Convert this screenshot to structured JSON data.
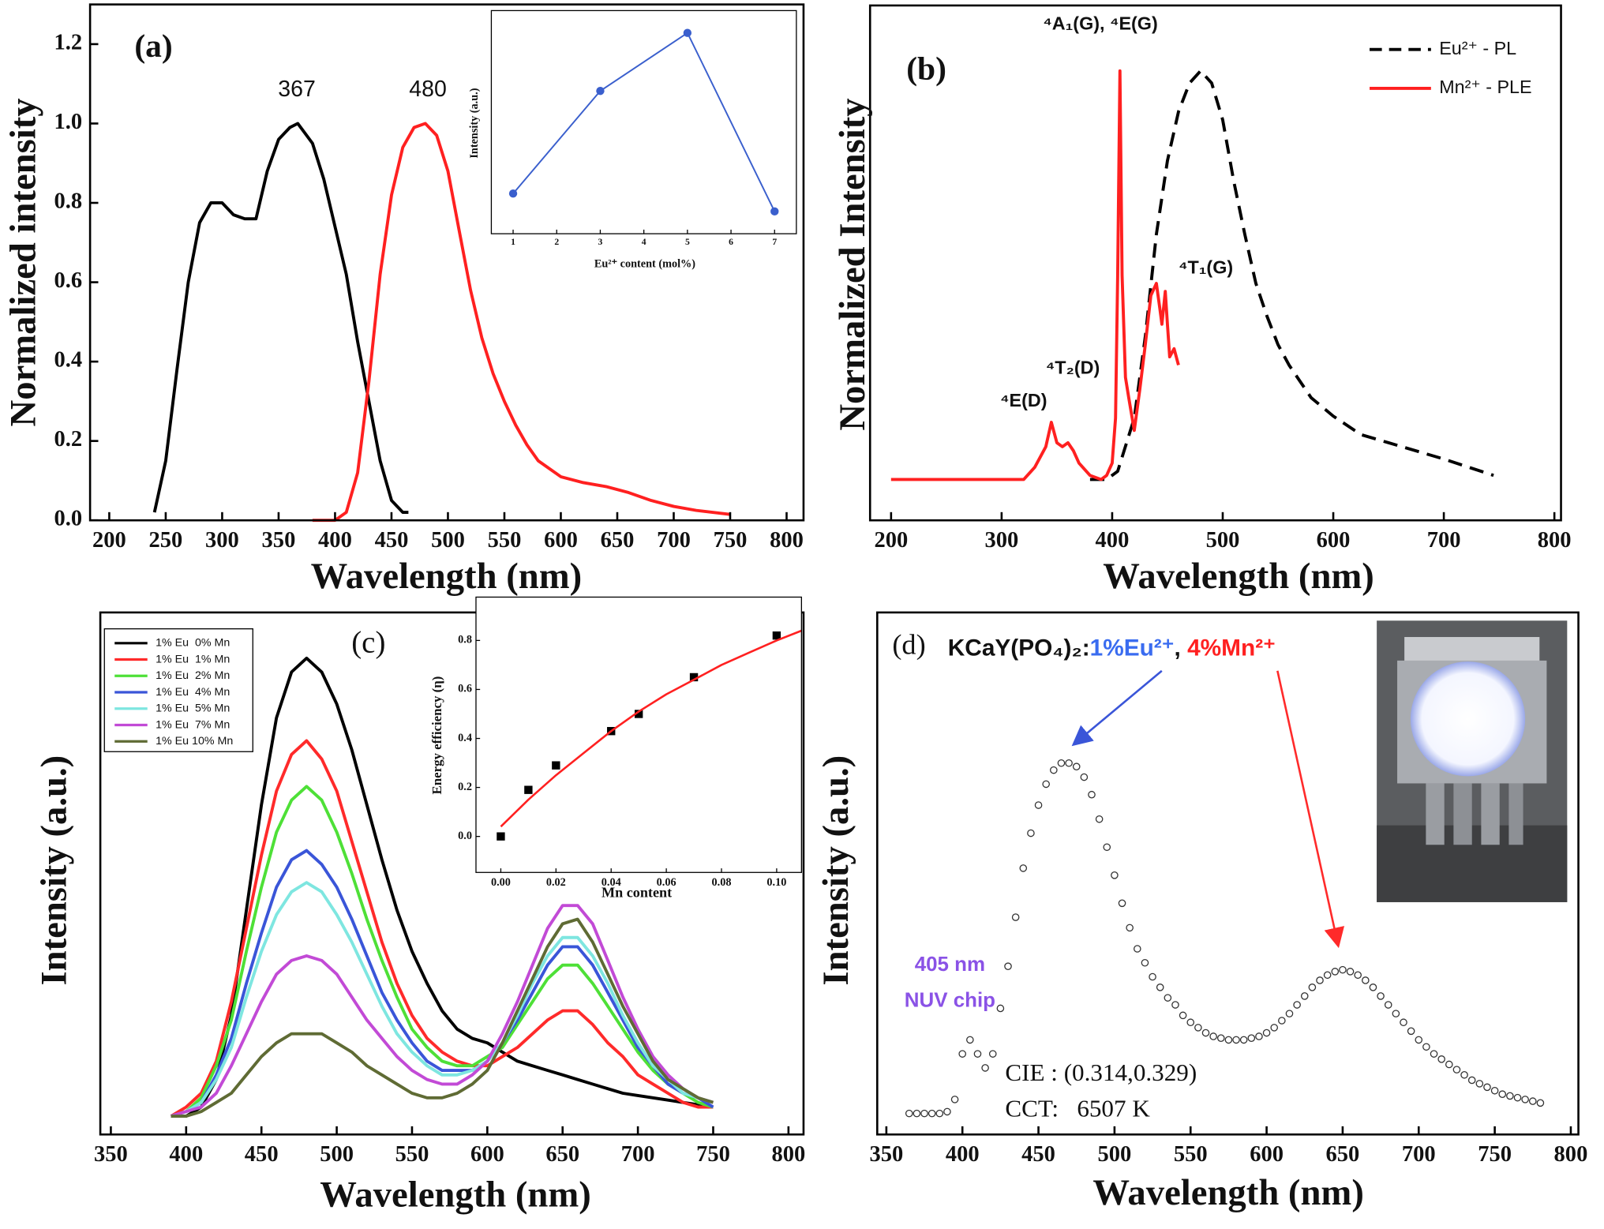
{
  "chart_data": [
    {
      "type": "line",
      "title": "(a)",
      "xlabel": "Wavelength (nm)",
      "ylabel": "Normalized intensity",
      "annotations": [
        "367",
        "480"
      ],
      "xlim": [
        183,
        815
      ],
      "xticks": [
        200,
        250,
        300,
        350,
        400,
        450,
        500,
        550,
        600,
        650,
        700,
        750,
        800
      ],
      "ylim": [
        0,
        1.3
      ],
      "yticks": [
        {
          "value": 0,
          "label": "0.0"
        },
        0.2,
        0.4,
        0.6,
        0.8,
        {
          "value": 1,
          "label": "1.0"
        },
        1.2
      ],
      "series": [
        {
          "color": "#000000",
          "mode": "line",
          "x": [
            240,
            250,
            260,
            270,
            280,
            290,
            300,
            310,
            320,
            330,
            340,
            350,
            360,
            367,
            380,
            390,
            400,
            410,
            420,
            430,
            440,
            450,
            460,
            465
          ],
          "values": [
            0.02,
            0.15,
            0.38,
            0.6,
            0.75,
            0.8,
            0.8,
            0.77,
            0.76,
            0.76,
            0.88,
            0.96,
            0.99,
            1,
            0.95,
            0.86,
            0.74,
            0.62,
            0.45,
            0.3,
            0.15,
            0.05,
            0.02,
            0.02
          ]
        },
        {
          "color": "#ff2020",
          "mode": "line",
          "x": [
            380,
            400,
            410,
            420,
            430,
            440,
            450,
            460,
            470,
            480,
            490,
            500,
            510,
            520,
            530,
            540,
            550,
            560,
            570,
            580,
            600,
            620,
            640,
            660,
            680,
            700,
            720,
            750
          ],
          "values": [
            0,
            0,
            0.02,
            0.12,
            0.35,
            0.62,
            0.82,
            0.94,
            0.99,
            1,
            0.97,
            0.88,
            0.73,
            0.58,
            0.46,
            0.37,
            0.3,
            0.24,
            0.19,
            0.15,
            0.11,
            0.095,
            0.085,
            0.07,
            0.05,
            0.035,
            0.025,
            0.015
          ]
        }
      ]
    },
    {
      "type": "line",
      "xlabel": "Eu²⁺ content (mol%)",
      "ylabel": "Intensity (a.u.)",
      "xlim": [
        0.5,
        7.5
      ],
      "xticks": [
        1,
        2,
        3,
        4,
        5,
        6,
        7
      ],
      "ylim": [
        0,
        1
      ],
      "x": [
        1,
        3,
        5,
        7
      ],
      "series": [
        {
          "color": "#3a5fcd",
          "mode": "line+markers",
          "marker": "circle",
          "values": [
            0.18,
            0.64,
            0.9,
            0.1
          ]
        }
      ]
    },
    {
      "type": "line",
      "title": "(b)",
      "xlabel": "Wavelength (nm)",
      "ylabel": "Normalized Intensity",
      "annotations": [
        "⁴A₁(G), ⁴E(G)",
        "⁴T₁(G)",
        "⁴T₂(D)",
        "⁴E(D)"
      ],
      "xlim": [
        181,
        806
      ],
      "xticks": [
        200,
        300,
        400,
        500,
        600,
        700,
        800
      ],
      "ylim": [
        -0.1,
        1.16
      ],
      "legend": "upper right",
      "series": [
        {
          "name": "Eu²⁺ - PL",
          "color": "#000000",
          "mode": "line",
          "dash": true,
          "x": [
            380,
            395,
            405,
            420,
            430,
            440,
            450,
            460,
            470,
            480,
            490,
            500,
            510,
            520,
            530,
            540,
            550,
            560,
            580,
            600,
            625,
            650,
            700,
            745
          ],
          "values": [
            0,
            0,
            0.02,
            0.15,
            0.35,
            0.6,
            0.78,
            0.9,
            0.97,
            1,
            0.97,
            0.88,
            0.73,
            0.6,
            0.48,
            0.4,
            0.33,
            0.28,
            0.2,
            0.155,
            0.11,
            0.09,
            0.05,
            0.01
          ]
        },
        {
          "name": "Mn²⁺ - PLE",
          "color": "#ff2020",
          "mode": "line",
          "x": [
            200,
            320,
            330,
            340,
            345,
            350,
            355,
            360,
            365,
            370,
            380,
            390,
            395,
            400,
            403,
            405,
            407,
            409,
            412,
            415,
            420,
            425,
            430,
            435,
            440,
            443,
            445,
            448,
            450,
            452,
            456,
            460
          ],
          "values": [
            0,
            0,
            0.03,
            0.08,
            0.14,
            0.09,
            0.08,
            0.09,
            0.07,
            0.04,
            0.01,
            0,
            0.01,
            0.04,
            0.15,
            0.5,
            1,
            0.5,
            0.25,
            0.2,
            0.12,
            0.22,
            0.33,
            0.45,
            0.48,
            0.42,
            0.38,
            0.46,
            0.38,
            0.3,
            0.32,
            0.28
          ]
        }
      ]
    },
    {
      "type": "line",
      "title": "(c)",
      "xlabel": "Wavelength (nm)",
      "ylabel": "Intensity (a.u.)",
      "xlim": [
        343,
        810
      ],
      "xticks": [
        350,
        400,
        450,
        500,
        550,
        600,
        650,
        700,
        750,
        800
      ],
      "ylim": [
        -0.04,
        1.1
      ],
      "legend": "upper left",
      "x": [
        390,
        400,
        410,
        420,
        430,
        440,
        450,
        460,
        470,
        480,
        490,
        500,
        510,
        520,
        530,
        540,
        550,
        560,
        570,
        580,
        590,
        600,
        610,
        620,
        630,
        640,
        650,
        660,
        670,
        680,
        690,
        700,
        710,
        720,
        730,
        740,
        750
      ],
      "series": [
        {
          "name": "1% Eu  0% Mn",
          "color": "#000000",
          "mode": "line",
          "values": [
            0,
            0,
            0.02,
            0.08,
            0.22,
            0.45,
            0.68,
            0.87,
            0.97,
            1,
            0.97,
            0.9,
            0.8,
            0.68,
            0.56,
            0.45,
            0.36,
            0.29,
            0.23,
            0.19,
            0.17,
            0.16,
            0.14,
            0.12,
            0.11,
            0.1,
            0.09,
            0.08,
            0.07,
            0.06,
            0.05,
            0.045,
            0.04,
            0.035,
            0.03,
            0.025,
            0.02
          ]
        },
        {
          "name": "1% Eu  1% Mn",
          "color": "#ff2a2a",
          "mode": "line",
          "values": [
            0,
            0.02,
            0.05,
            0.12,
            0.25,
            0.41,
            0.57,
            0.71,
            0.79,
            0.82,
            0.78,
            0.71,
            0.6,
            0.49,
            0.38,
            0.29,
            0.22,
            0.17,
            0.14,
            0.12,
            0.11,
            0.11,
            0.13,
            0.15,
            0.18,
            0.21,
            0.23,
            0.23,
            0.2,
            0.16,
            0.13,
            0.09,
            0.07,
            0.05,
            0.03,
            0.02,
            0.02
          ]
        },
        {
          "name": "1% Eu  2% Mn",
          "color": "#4ee037",
          "mode": "line",
          "values": [
            0,
            0.01,
            0.04,
            0.11,
            0.21,
            0.36,
            0.5,
            0.62,
            0.69,
            0.72,
            0.69,
            0.62,
            0.53,
            0.43,
            0.34,
            0.26,
            0.19,
            0.15,
            0.12,
            0.11,
            0.11,
            0.13,
            0.15,
            0.2,
            0.25,
            0.3,
            0.33,
            0.33,
            0.29,
            0.24,
            0.19,
            0.14,
            0.1,
            0.07,
            0.05,
            0.03,
            0.02
          ]
        },
        {
          "name": "1% Eu  4% Mn",
          "color": "#3a55d8",
          "mode": "line",
          "values": [
            0,
            0.01,
            0.03,
            0.09,
            0.17,
            0.29,
            0.4,
            0.5,
            0.56,
            0.58,
            0.55,
            0.5,
            0.43,
            0.35,
            0.27,
            0.21,
            0.16,
            0.12,
            0.1,
            0.1,
            0.1,
            0.12,
            0.16,
            0.21,
            0.27,
            0.33,
            0.37,
            0.37,
            0.33,
            0.27,
            0.21,
            0.15,
            0.11,
            0.07,
            0.05,
            0.04,
            0.02
          ]
        },
        {
          "name": "1% Eu  5% Mn",
          "color": "#7ee6e0",
          "mode": "line",
          "values": [
            0,
            0.01,
            0.03,
            0.08,
            0.15,
            0.26,
            0.36,
            0.44,
            0.49,
            0.51,
            0.49,
            0.44,
            0.38,
            0.31,
            0.24,
            0.18,
            0.14,
            0.11,
            0.09,
            0.09,
            0.1,
            0.12,
            0.16,
            0.22,
            0.29,
            0.35,
            0.39,
            0.39,
            0.35,
            0.29,
            0.22,
            0.16,
            0.11,
            0.08,
            0.05,
            0.04,
            0.03
          ]
        },
        {
          "name": "1% Eu  7% Mn",
          "color": "#c24ad6",
          "mode": "line",
          "values": [
            0,
            0.01,
            0.02,
            0.05,
            0.11,
            0.18,
            0.25,
            0.31,
            0.34,
            0.35,
            0.34,
            0.31,
            0.26,
            0.21,
            0.17,
            0.13,
            0.1,
            0.08,
            0.07,
            0.07,
            0.09,
            0.12,
            0.18,
            0.25,
            0.33,
            0.41,
            0.46,
            0.46,
            0.42,
            0.34,
            0.26,
            0.19,
            0.13,
            0.09,
            0.06,
            0.04,
            0.03
          ]
        },
        {
          "name": "1% Eu 10% Mn",
          "color": "#5f6b34",
          "mode": "line",
          "values": [
            0,
            0,
            0.01,
            0.03,
            0.05,
            0.09,
            0.13,
            0.16,
            0.18,
            0.18,
            0.18,
            0.16,
            0.14,
            0.11,
            0.09,
            0.07,
            0.05,
            0.04,
            0.04,
            0.05,
            0.07,
            0.1,
            0.16,
            0.23,
            0.3,
            0.37,
            0.42,
            0.43,
            0.38,
            0.31,
            0.24,
            0.18,
            0.12,
            0.08,
            0.06,
            0.04,
            0.03
          ]
        }
      ]
    },
    {
      "type": "scatter",
      "xlabel": "Mn content",
      "ylabel": "Energy efficiency (η)",
      "xlim": [
        -0.009,
        0.109
      ],
      "xticks": [
        {
          "value": 0,
          "label": "0.00"
        },
        0.02,
        0.04,
        0.06,
        0.08,
        {
          "value": 0.1,
          "label": "0.10"
        }
      ],
      "ylim": [
        -0.147,
        0.977
      ],
      "yticks": [
        {
          "value": 0,
          "label": "0.0"
        },
        0.2,
        0.4,
        0.6,
        0.8
      ],
      "series": [
        {
          "color": "#000000",
          "mode": "markers",
          "marker": "square",
          "x": [
            0,
            0.01,
            0.02,
            0.04,
            0.05,
            0.07,
            0.1
          ],
          "values": [
            0,
            0.19,
            0.29,
            0.43,
            0.5,
            0.65,
            0.82
          ]
        },
        {
          "color": "#ff2020",
          "mode": "line",
          "x": [
            0,
            0.01,
            0.02,
            0.03,
            0.04,
            0.05,
            0.06,
            0.07,
            0.08,
            0.09,
            0.1,
            0.109
          ],
          "values": [
            0.04,
            0.15,
            0.25,
            0.34,
            0.43,
            0.51,
            0.58,
            0.64,
            0.7,
            0.75,
            0.8,
            0.84
          ]
        }
      ]
    },
    {
      "type": "scatter",
      "title": "(d)",
      "formula": [
        "KCaY(PO₄)₂:",
        "1%Eu²⁺",
        ", ",
        "4%Mn²⁺"
      ],
      "xlabel": "Wavelength (nm)",
      "ylabel": "Intensity (a.u.)",
      "annotations": [
        "405 nm",
        "NUV chip",
        "CIE : (0.314,0.329)",
        "CCT:   6507 K"
      ],
      "xlim": [
        344,
        805
      ],
      "xticks": [
        350,
        400,
        450,
        500,
        550,
        600,
        650,
        700,
        750,
        800
      ],
      "ylim": [
        -0.06,
        1.43
      ],
      "series": [
        {
          "color": "#333333",
          "mode": "markers",
          "marker": "open-circle",
          "x": [
            365,
            370,
            375,
            380,
            385,
            390,
            395,
            400,
            405,
            410,
            415,
            420,
            425,
            430,
            435,
            440,
            445,
            450,
            455,
            460,
            465,
            470,
            475,
            480,
            485,
            490,
            495,
            500,
            505,
            510,
            515,
            520,
            525,
            530,
            535,
            540,
            545,
            550,
            555,
            560,
            565,
            570,
            575,
            580,
            585,
            590,
            595,
            600,
            605,
            610,
            615,
            620,
            625,
            630,
            635,
            640,
            645,
            650,
            655,
            660,
            665,
            670,
            675,
            680,
            685,
            690,
            695,
            700,
            705,
            710,
            715,
            720,
            725,
            730,
            735,
            740,
            745,
            750,
            755,
            760,
            765,
            770,
            775,
            780
          ],
          "values": [
            0,
            0,
            0,
            0,
            0,
            0.005,
            0.04,
            0.17,
            0.21,
            0.17,
            0.13,
            0.17,
            0.3,
            0.42,
            0.56,
            0.7,
            0.8,
            0.88,
            0.94,
            0.98,
            1,
            1,
            0.99,
            0.96,
            0.91,
            0.84,
            0.76,
            0.68,
            0.6,
            0.53,
            0.47,
            0.43,
            0.39,
            0.36,
            0.33,
            0.31,
            0.28,
            0.26,
            0.245,
            0.23,
            0.22,
            0.215,
            0.21,
            0.21,
            0.21,
            0.215,
            0.22,
            0.23,
            0.245,
            0.265,
            0.285,
            0.31,
            0.335,
            0.36,
            0.38,
            0.395,
            0.405,
            0.41,
            0.405,
            0.395,
            0.38,
            0.36,
            0.335,
            0.31,
            0.285,
            0.26,
            0.235,
            0.21,
            0.19,
            0.17,
            0.155,
            0.14,
            0.125,
            0.11,
            0.095,
            0.085,
            0.075,
            0.065,
            0.055,
            0.05,
            0.045,
            0.04,
            0.035,
            0.03
          ]
        }
      ]
    }
  ]
}
